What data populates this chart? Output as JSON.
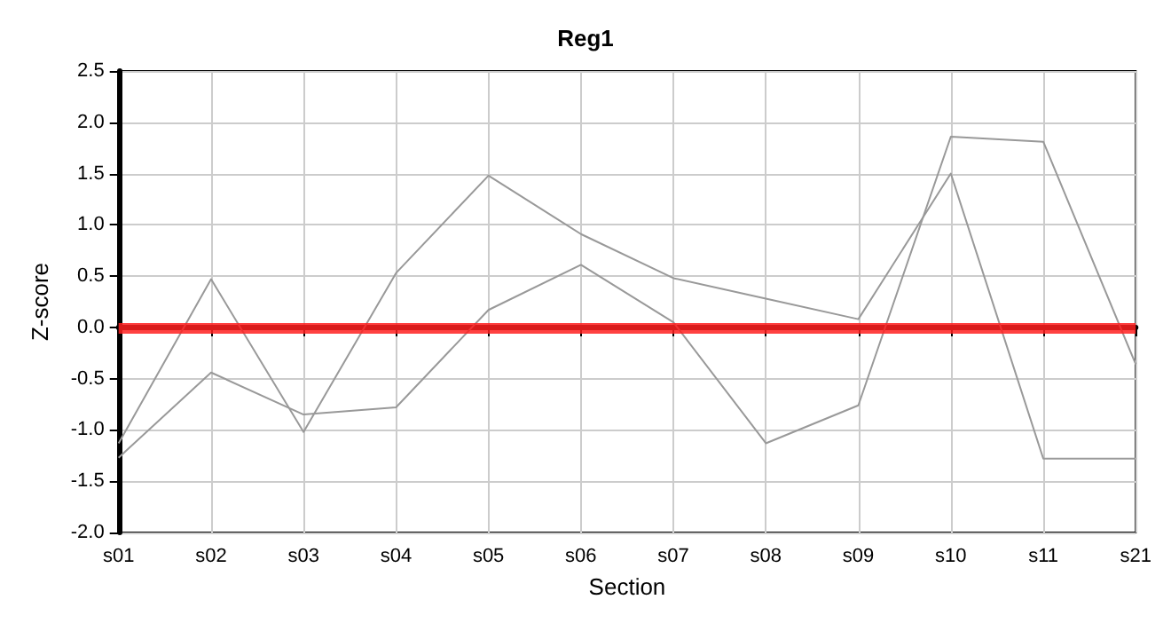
{
  "chart_data": {
    "type": "line",
    "title": "Reg1",
    "xlabel": "Section",
    "ylabel": "Z-score",
    "categories": [
      "s01",
      "s02",
      "s03",
      "s04",
      "s05",
      "s06",
      "s07",
      "s08",
      "s09",
      "s10",
      "s11",
      "s21"
    ],
    "series": [
      {
        "color": "#999999",
        "values": [
          -1.13,
          0.47,
          -1.02,
          0.53,
          1.48,
          0.91,
          0.48,
          0.28,
          0.08,
          1.5,
          -1.28,
          -1.28
        ]
      },
      {
        "color": "#999999",
        "values": [
          -1.27,
          -0.44,
          -0.85,
          -0.78,
          0.17,
          0.61,
          0.05,
          -1.13,
          -0.76,
          1.86,
          1.81,
          -0.36
        ]
      }
    ],
    "ylim": [
      -2,
      2.5
    ],
    "yticks": [
      {
        "value": -2,
        "label": "-2.0"
      },
      {
        "value": -1.5,
        "label": "-1.5"
      },
      {
        "value": -1,
        "label": "-1.0"
      },
      {
        "value": -0.5,
        "label": "-0.5"
      },
      {
        "value": 0,
        "label": "0.0"
      },
      {
        "value": 0.5,
        "label": "0.5"
      },
      {
        "value": 1,
        "label": "1.0"
      },
      {
        "value": 1.5,
        "label": "1.5"
      },
      {
        "value": 2,
        "label": "2.0"
      },
      {
        "value": 2.5,
        "label": "2.5"
      }
    ],
    "ref_lines": [
      {
        "axis": "y",
        "value": 0,
        "color": "#ff2020"
      }
    ],
    "grid": true,
    "marker": "none",
    "line_style": "solid"
  }
}
